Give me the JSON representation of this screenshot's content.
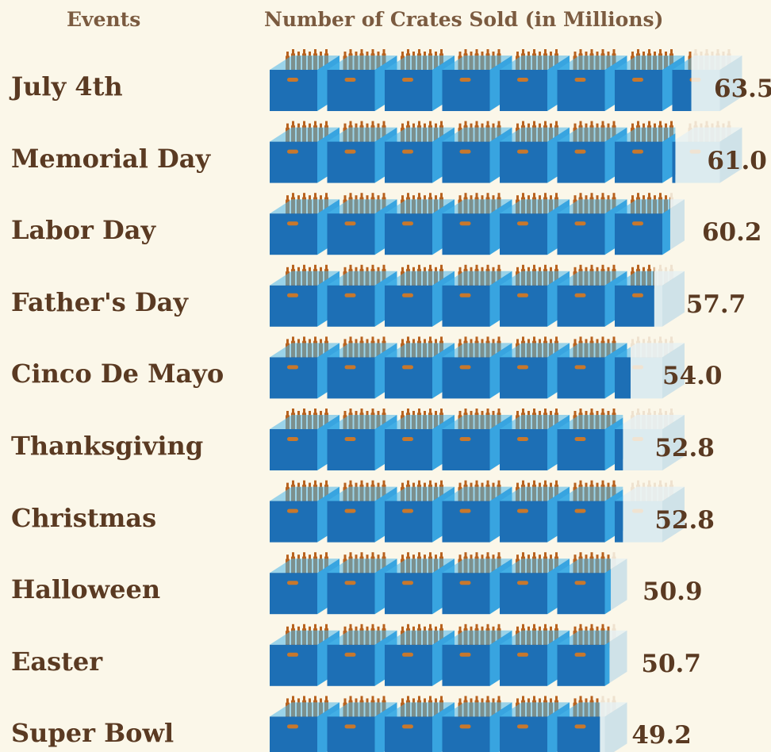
{
  "chart_data": {
    "type": "bar",
    "title": "",
    "category_header": "Events",
    "value_header": "Number of Crates Sold (in Millions)",
    "icon": "beer-crate-icon",
    "colors": {
      "crate_front": "#1d6fb5",
      "crate_side": "#38a4e0",
      "crate_top": "#4ab6ea",
      "bottles": "#b8621e",
      "faded_crate": "#dcebef",
      "text": "#5a3a22",
      "background": "#fbf7e9"
    },
    "categories": [
      "July 4th",
      "Memorial Day",
      "Labor Day",
      "Father's Day",
      "Cinco De Mayo",
      "Thanksgiving",
      "Christmas",
      "Halloween",
      "Easter",
      "Super Bowl"
    ],
    "values": [
      63.5,
      61.0,
      60.2,
      57.7,
      54.0,
      52.8,
      52.8,
      50.9,
      50.7,
      49.2
    ],
    "value_labels": [
      "63.5",
      "61.0",
      "60.2",
      "57.7",
      "54.0",
      "52.8",
      "52.8",
      "50.9",
      "50.7",
      "49.2"
    ]
  }
}
